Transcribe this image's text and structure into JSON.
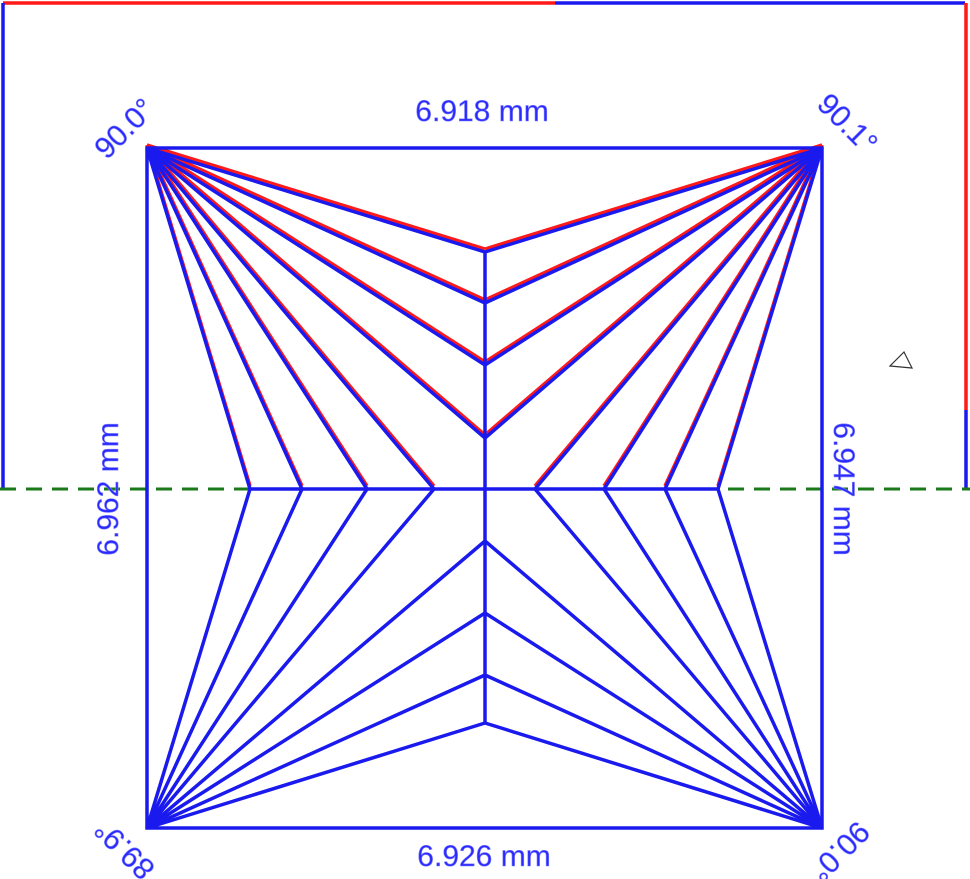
{
  "dimensions": {
    "top": "6.918 mm",
    "bottom": "6.926 mm",
    "left": "6.962 mm",
    "right": "6.947 mm"
  },
  "angles": {
    "top_left": "90.0°",
    "top_right": "90.1°",
    "bottom_left": "89.9°",
    "bottom_right": "90.0°"
  }
}
